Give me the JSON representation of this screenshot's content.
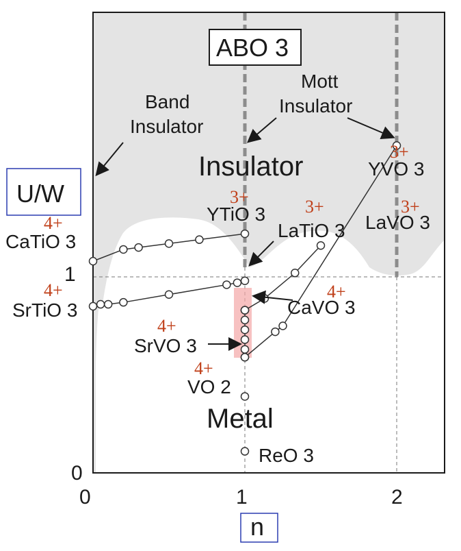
{
  "chart_data": {
    "type": "scatter",
    "title": "ABO 3",
    "xlabel": "n",
    "ylabel": "U/W",
    "xlim": [
      0,
      2.3
    ],
    "ylim": [
      0,
      2.2
    ],
    "x_ticks": [
      "0",
      "1",
      "2"
    ],
    "y_ticks": [
      "0",
      "1"
    ],
    "regions": {
      "insulator": "Insulator",
      "metal": "Metal"
    },
    "annotations": {
      "band_insulator": [
        "Band",
        "Insulator"
      ],
      "mott_insulator": [
        "Mott",
        "Insulator"
      ]
    },
    "series": [
      {
        "compound": "CaTiO 3",
        "oxidation": "4+",
        "end_compound": "YTiO 3",
        "end_oxidation": "3+",
        "x": [
          0.0,
          0.2,
          0.3,
          0.5,
          0.7,
          1.0
        ],
        "y": [
          1.08,
          1.14,
          1.15,
          1.17,
          1.19,
          1.22
        ]
      },
      {
        "compound": "SrTiO 3",
        "oxidation": "4+",
        "end_compound": "",
        "end_oxidation": "",
        "x": [
          0.0,
          0.05,
          0.1,
          0.2,
          0.5,
          0.88,
          0.95,
          1.0
        ],
        "y": [
          0.85,
          0.86,
          0.86,
          0.87,
          0.91,
          0.96,
          0.97,
          0.98
        ]
      },
      {
        "compound": "LaTiO 3",
        "oxidation": "3+",
        "end_compound": "",
        "end_oxidation": "",
        "x": [
          1.0,
          1.13,
          1.33,
          1.5
        ],
        "y": [
          0.83,
          0.89,
          1.02,
          1.16
        ]
      },
      {
        "compound": "YVO 3",
        "oxidation": "3+",
        "end_compound": "LaVO 3",
        "end_oxidation": "3+",
        "x": [
          1.0,
          1.2,
          1.25,
          2.0
        ],
        "y": [
          0.59,
          0.72,
          0.75,
          1.67
        ]
      }
    ],
    "vertical_series": {
      "x": 1.0,
      "y": [
        0.83,
        0.78,
        0.73,
        0.68,
        0.63,
        0.59
      ]
    },
    "extra_points": [
      {
        "compound": "CaVO 3",
        "oxidation": "4+",
        "x": 1.0,
        "y": 0.83
      },
      {
        "compound": "SrVO 3",
        "oxidation": "4+",
        "x": 1.0,
        "y": 0.59
      },
      {
        "compound": "VO 2",
        "oxidation": "4+",
        "x": 1.0,
        "y": 0.39
      },
      {
        "compound": "ReO 3",
        "oxidation": "",
        "x": 1.0,
        "y": 0.11
      }
    ],
    "dashed_lines": {
      "x": [
        1,
        2
      ],
      "y": [
        1
      ]
    },
    "grid": false
  },
  "colors": {
    "insulator_bg": "#e4e4e4",
    "metal_bg": "#ffffff",
    "oxidation_label": "#c0401a",
    "highlight_band": "#f4a6a6",
    "axis_box_border": "#2a3cb0"
  }
}
